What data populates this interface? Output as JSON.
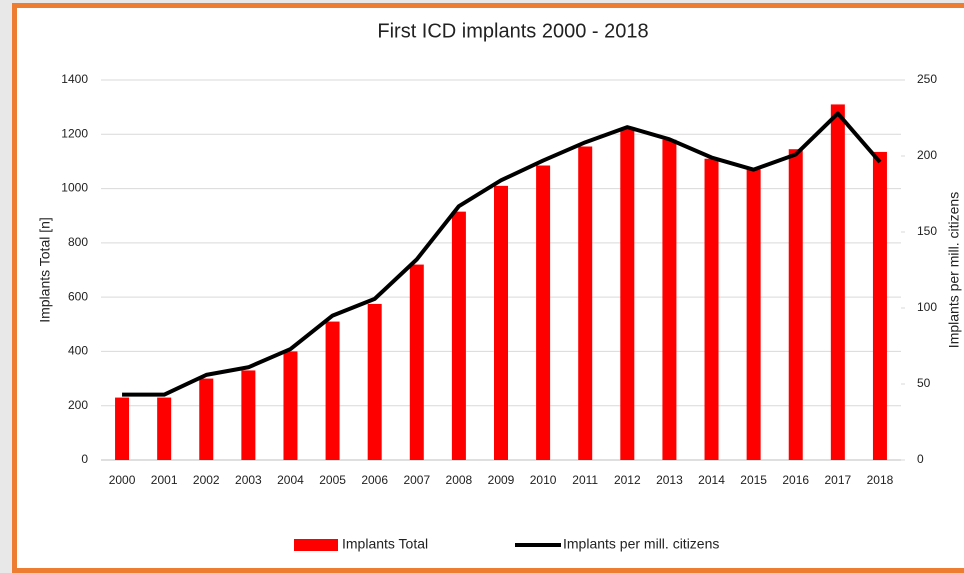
{
  "chart_data": {
    "type": "bar-line",
    "title": "First ICD implants 2000 - 2018",
    "y_label": "Implants Total [n]",
    "y2_label": "Implants per mill. citizens",
    "categories": [
      "2000",
      "2001",
      "2002",
      "2003",
      "2004",
      "2005",
      "2006",
      "2007",
      "2008",
      "2009",
      "2010",
      "2011",
      "2012",
      "2013",
      "2014",
      "2015",
      "2016",
      "2017",
      "2018"
    ],
    "series": [
      {
        "name": "Implants Total",
        "type": "bar",
        "color": "#ff0000",
        "values": [
          230,
          230,
          300,
          330,
          400,
          510,
          575,
          720,
          915,
          1010,
          1085,
          1155,
          1220,
          1180,
          1110,
          1070,
          1145,
          1310,
          1135
        ]
      },
      {
        "name": "Implants per mill. citizens",
        "type": "line",
        "axis": "y2",
        "color": "#000000",
        "values": [
          43,
          43,
          56,
          61,
          73,
          95,
          106,
          132,
          167,
          184,
          197,
          209,
          219,
          211,
          199,
          191,
          201,
          228,
          196
        ]
      }
    ],
    "ylim": [
      0,
      1400
    ],
    "yticks": [
      0,
      200,
      400,
      600,
      800,
      1000,
      1200,
      1400
    ],
    "y2lim": [
      0,
      250
    ],
    "y2ticks": [
      0,
      50,
      100,
      150,
      200,
      250
    ],
    "grid": true,
    "legend": "bottom"
  }
}
